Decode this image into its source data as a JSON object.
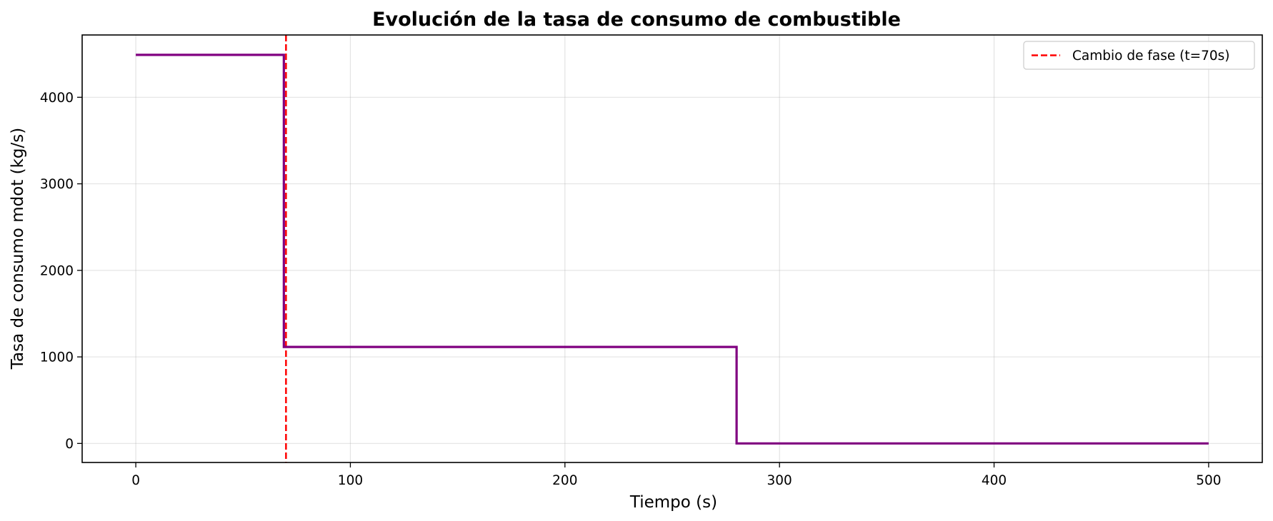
{
  "chart_data": {
    "type": "line",
    "title": "Evolución de la tasa de consumo de combustible",
    "xlabel": "Tiempo (s)",
    "ylabel": "Tasa de consumo mdot (kg/s)",
    "xlim": [
      -25,
      525
    ],
    "ylim": [
      -220,
      4720
    ],
    "x_ticks": [
      0,
      100,
      200,
      300,
      400,
      500
    ],
    "y_ticks": [
      0,
      1000,
      2000,
      3000,
      4000
    ],
    "grid": true,
    "legend_position": "top-right",
    "series": [
      {
        "color": "#800080",
        "x": [
          0,
          69,
          69,
          280,
          280,
          500
        ],
        "y": [
          4490,
          4490,
          1115,
          1115,
          0,
          0
        ]
      }
    ],
    "reference_lines": [
      {
        "name": "Cambio de fase (t=70s)",
        "orientation": "vertical",
        "x": 70,
        "color": "#ff0000",
        "style": "dashed"
      }
    ]
  }
}
